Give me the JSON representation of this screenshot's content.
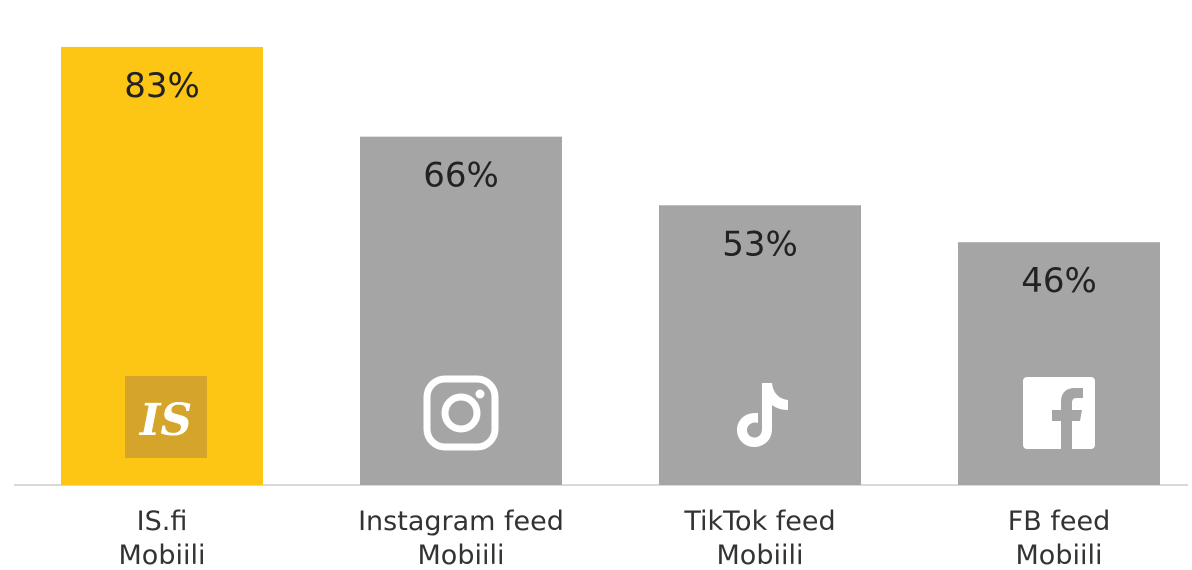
{
  "chart_data": {
    "type": "bar",
    "categories": [
      {
        "line1": "IS.fi",
        "line2": "Mobiili",
        "icon": "is-logo-icon"
      },
      {
        "line1": "Instagram feed",
        "line2": "Mobiili",
        "icon": "instagram-icon"
      },
      {
        "line1": "TikTok feed",
        "line2": "Mobiili",
        "icon": "tiktok-icon"
      },
      {
        "line1": "FB feed",
        "line2": "Mobiili",
        "icon": "facebook-icon"
      }
    ],
    "values": [
      83,
      66,
      53,
      46
    ],
    "value_labels": [
      "83%",
      "66%",
      "53%",
      "46%"
    ],
    "logo_text": "IS",
    "ylim": [
      0,
      90
    ],
    "grid": false,
    "colors": {
      "highlight": "#FDC514",
      "bar": "#A5A5A5",
      "baseline": "#D9D9D9",
      "logo_bg": "#D4A52A",
      "icon": "#FFFFFF"
    }
  }
}
